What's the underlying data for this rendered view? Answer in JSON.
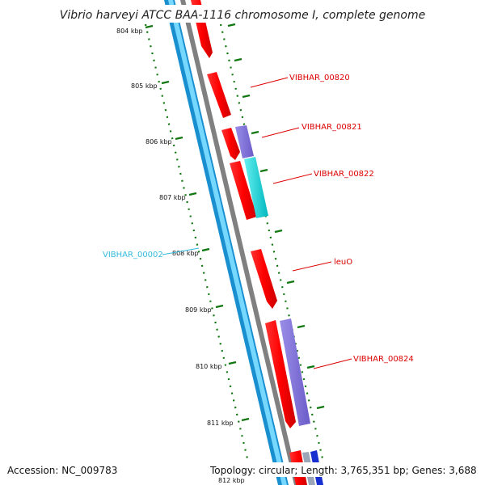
{
  "title": "Vibrio harveyi ATCC BAA-1116 chromosome I, complete genome",
  "footer": {
    "accession": "Accession: NC_009783",
    "topology": "Topology: circular; Length: 3,765,351 bp; Genes: 3,688"
  },
  "ruler": {
    "unit_labels": [
      "804 kbp",
      "805 kbp",
      "806 kbp",
      "807 kbp",
      "808 kbp",
      "809 kbp",
      "810 kbp",
      "811 kbp",
      "812 kbp"
    ]
  },
  "gene_labels": {
    "VIBHAR_00820": "VIBHAR_00820",
    "VIBHAR_00821": "VIBHAR_00821",
    "VIBHAR_00822": "VIBHAR_00822",
    "leuO": "leuO",
    "VIBHAR_00824": "VIBHAR_00824",
    "VIBHAR_00002": "VIBHAR_00002"
  },
  "colors": {
    "forward_cds": "#ff0000",
    "purple_feature": "#7b6fd6",
    "cyan_feature": "#00d8d8",
    "blue_feature": "#1830d0",
    "reverse_strand_band": "#33bbee",
    "backbone": "#808080",
    "ruler_ticks": "#117711",
    "label_red": "#dd0000",
    "label_cyan": "#33bbdd"
  }
}
